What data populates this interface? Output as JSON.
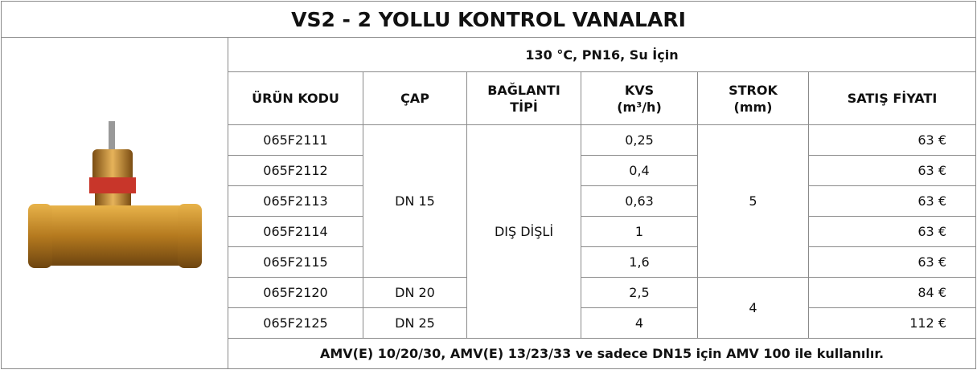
{
  "header": {
    "title": "VS2 - 2 YOLLU KONTROL VANALARI",
    "subtitle": "130 °C, PN16, Su İçin"
  },
  "table": {
    "headers": [
      "ÜRÜN KODU",
      "ÇAP",
      [
        "BAĞLANTI",
        "TİPİ"
      ],
      [
        "KVS",
        "(m³/h)"
      ],
      [
        "STROK",
        "(mm)"
      ],
      "SATIŞ FİYATI"
    ],
    "rows": [
      {
        "code": "065F2111",
        "kvs": "0,25",
        "price": "63 €"
      },
      {
        "code": "065F2112",
        "kvs": "0,4",
        "price": "63 €"
      },
      {
        "code": "065F2113",
        "kvs": "0,63",
        "price": "63 €"
      },
      {
        "code": "065F2114",
        "kvs": "1",
        "price": "63 €"
      },
      {
        "code": "065F2115",
        "kvs": "1,6",
        "price": "63 €"
      },
      {
        "code": "065F2120",
        "kvs": "2,5",
        "price": "84 €"
      },
      {
        "code": "065F2125",
        "kvs": "4",
        "price": "112 €"
      }
    ],
    "cap": [
      "DN 15",
      "DN 20",
      "DN 25"
    ],
    "connection": "DIŞ DİŞLİ",
    "strok": [
      "5",
      "4"
    ],
    "footer": "AMV(E) 10/20/30, AMV(E) 13/23/33 ve sadece DN15 için AMV 100 ile kullanılır."
  }
}
